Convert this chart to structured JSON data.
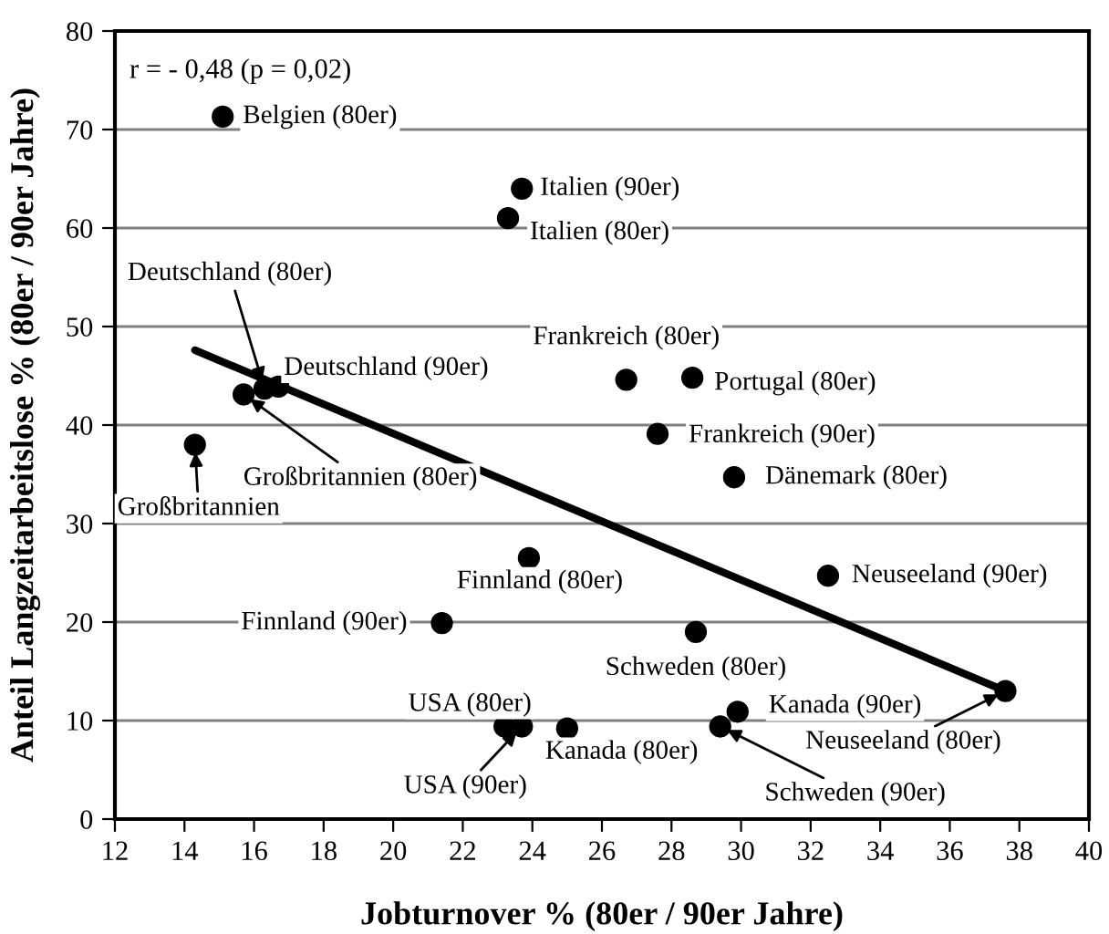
{
  "chart_data": {
    "type": "scatter",
    "xlabel": "Jobturnover % (80er / 90er Jahre)",
    "ylabel": "Anteil Langzeitarbeitslose % (80er / 90er Jahre)",
    "series": [
      {
        "color": "#000000",
        "marker": "circle",
        "x": [
          15.1,
          23.7,
          23.3,
          16.3,
          16.7,
          15.7,
          14.3,
          26.7,
          28.6,
          27.6,
          29.8,
          23.9,
          21.4,
          23.2,
          23.7,
          25.0,
          32.5,
          28.7,
          29.9,
          29.4,
          37.6
        ],
        "values": [
          71.3,
          64.0,
          61.0,
          43.7,
          43.9,
          43.1,
          38.0,
          44.6,
          44.8,
          39.1,
          34.7,
          26.5,
          19.9,
          9.4,
          9.4,
          9.2,
          24.7,
          19.0,
          10.9,
          9.4,
          13.0
        ]
      },
      {
        "type": "line",
        "color": "#000000",
        "marker": "none",
        "line_style": "solid",
        "x": [
          14.3,
          37.6
        ],
        "values": [
          47.6,
          13.0
        ]
      }
    ],
    "xlim": [
      12,
      40
    ],
    "xticks": [
      12,
      14,
      16,
      18,
      20,
      22,
      24,
      26,
      28,
      30,
      32,
      34,
      36,
      38,
      40
    ],
    "ylim": [
      0,
      80
    ],
    "yticks": [
      0,
      10,
      20,
      30,
      40,
      50,
      60,
      70,
      80
    ],
    "grid": "y",
    "legend": false,
    "annotations": [
      "r = - 0,48 (p = 0,02)",
      {
        "text": "Belgien (80er)",
        "x": 15.1,
        "y": 71.3
      },
      {
        "text": "Italien (90er)",
        "x": 23.7,
        "y": 64.0
      },
      {
        "text": "Italien (80er)",
        "x": 23.3,
        "y": 61.0
      },
      {
        "text": "Deutschland (80er)",
        "x": 16.3,
        "y": 43.7
      },
      {
        "text": "Deutschland (90er)",
        "x": 16.7,
        "y": 43.9
      },
      {
        "text": "Großbritannien (80er)",
        "x": 15.7,
        "y": 43.1
      },
      {
        "text": "Großbritannien",
        "x": 14.3,
        "y": 38.0
      },
      {
        "text": "Frankreich (80er)",
        "x": 26.7,
        "y": 44.6
      },
      {
        "text": "Portugal (80er)",
        "x": 28.6,
        "y": 44.8
      },
      {
        "text": "Frankreich (90er)",
        "x": 27.6,
        "y": 39.1
      },
      {
        "text": "Dänemark (80er)",
        "x": 29.8,
        "y": 34.7
      },
      {
        "text": "Finnland (80er)",
        "x": 23.9,
        "y": 26.5
      },
      {
        "text": "Finnland (90er)",
        "x": 21.4,
        "y": 19.9
      },
      {
        "text": "USA (80er)",
        "x": 23.2,
        "y": 9.4
      },
      {
        "text": "USA (90er)",
        "x": 23.7,
        "y": 9.4
      },
      {
        "text": "Kanada (80er)",
        "x": 25.0,
        "y": 9.2
      },
      {
        "text": "Neuseeland (90er)",
        "x": 32.5,
        "y": 24.7
      },
      {
        "text": "Schweden (80er)",
        "x": 28.7,
        "y": 19.0
      },
      {
        "text": "Kanada (90er)",
        "x": 29.9,
        "y": 10.9
      },
      {
        "text": "Schweden (90er)",
        "x": 29.4,
        "y": 9.4
      },
      {
        "text": "Neuseeland (80er)",
        "x": 37.6,
        "y": 13.0
      }
    ]
  }
}
